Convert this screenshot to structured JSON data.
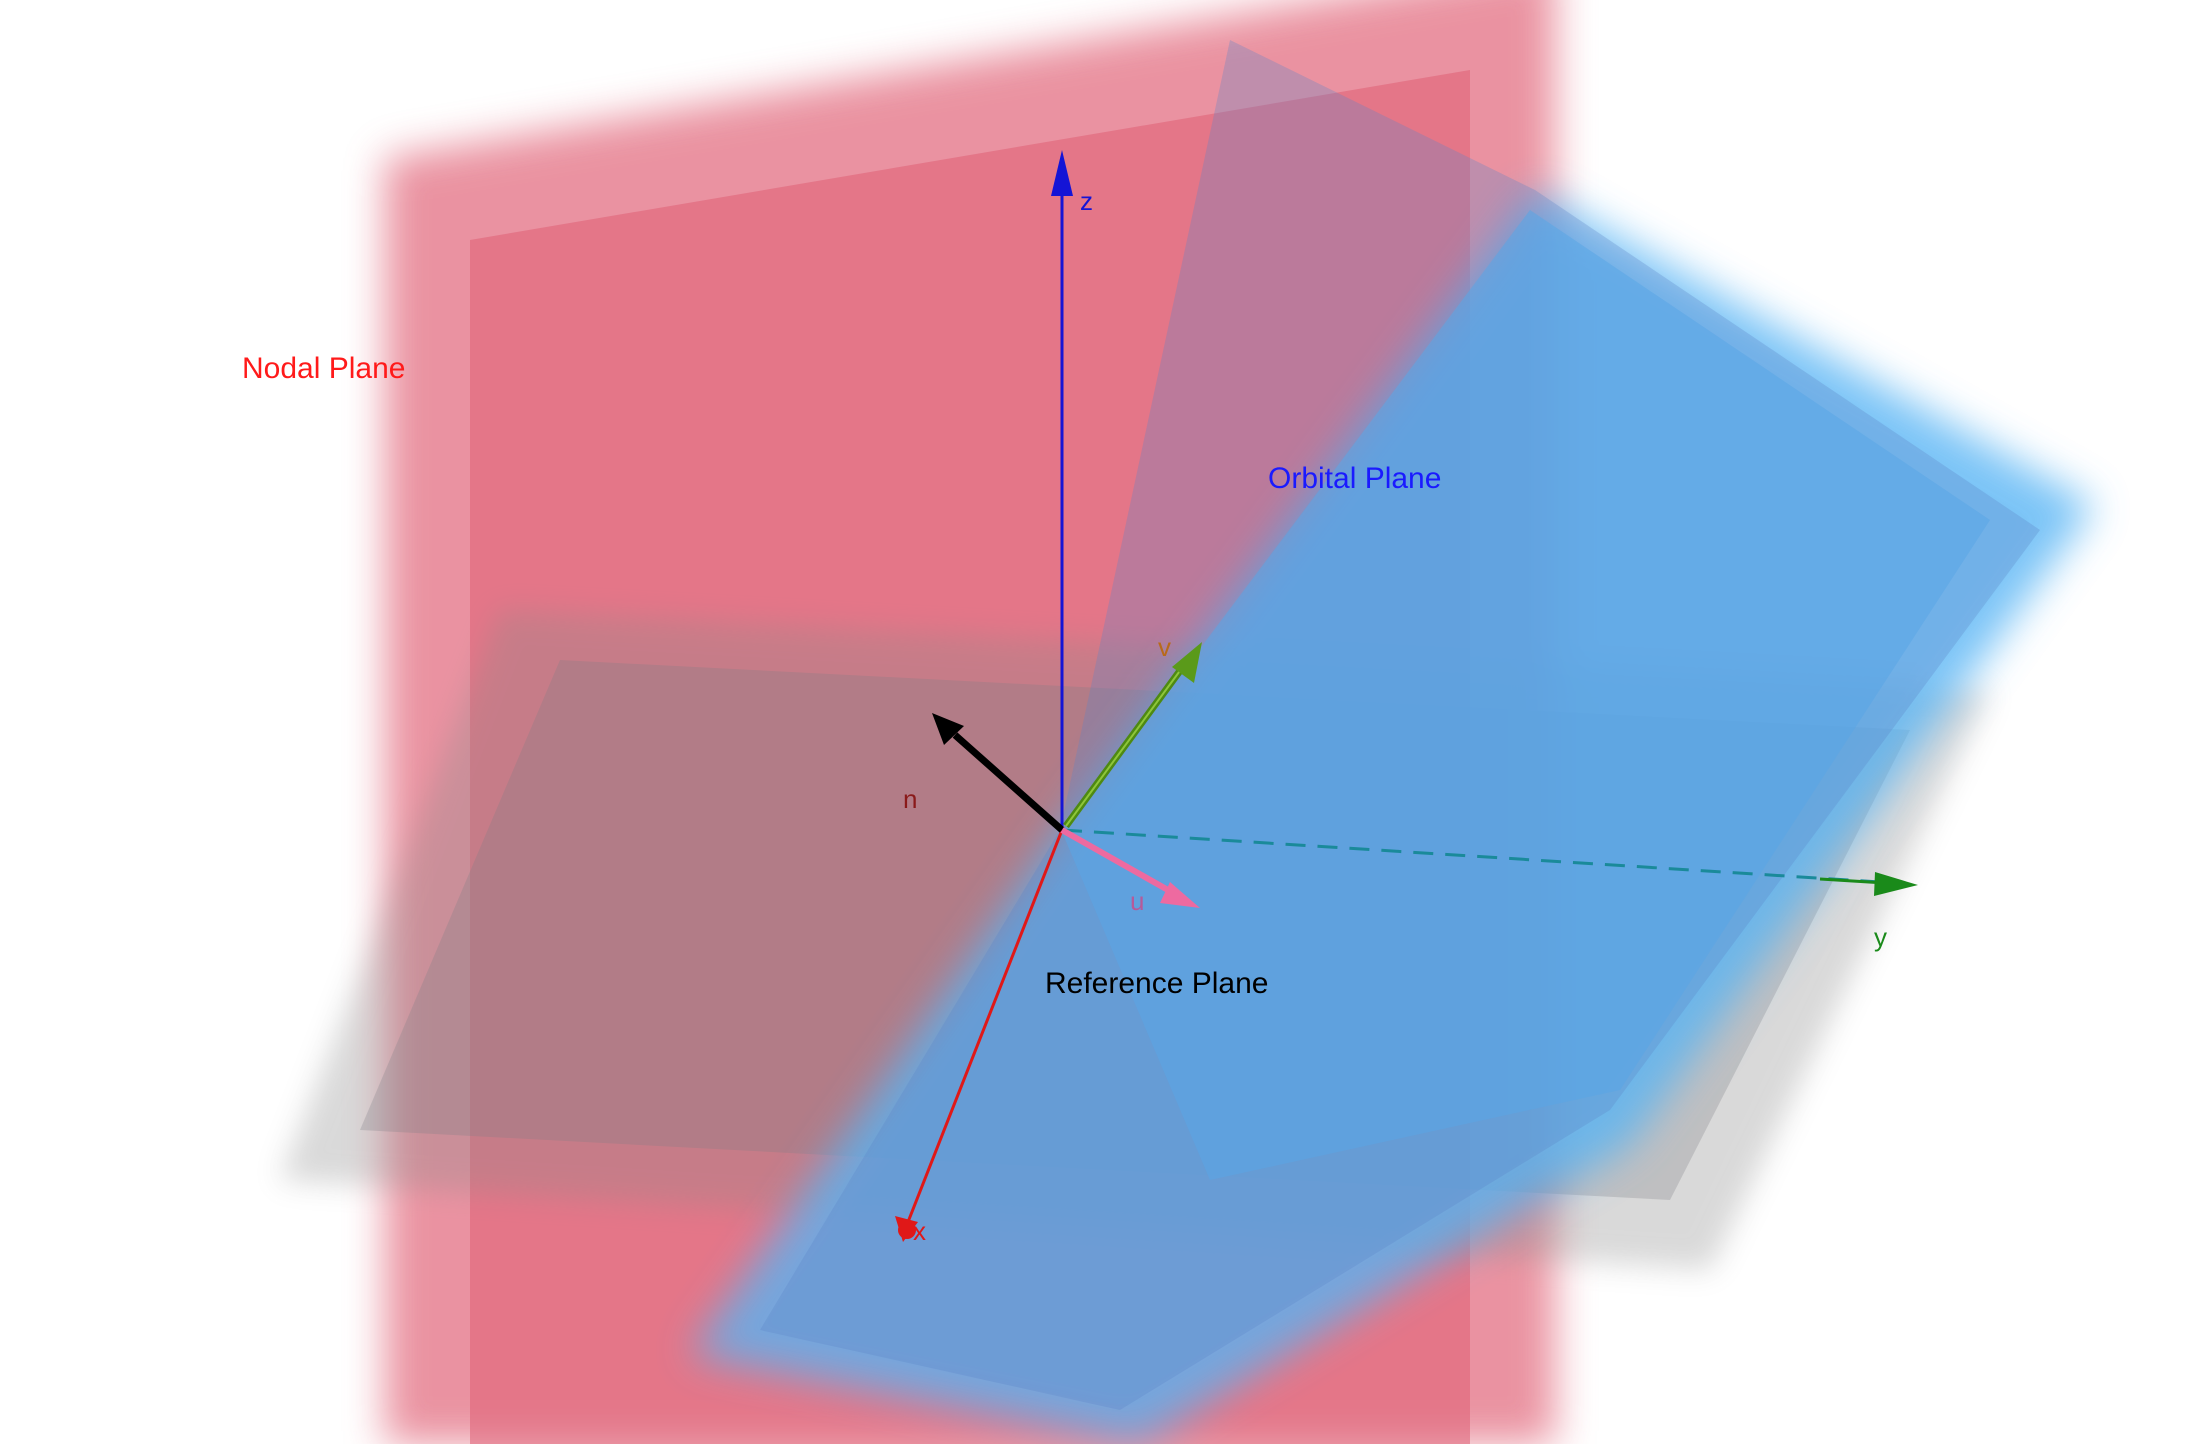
{
  "diagram": {
    "labels": {
      "nodal_plane": "Nodal Plane",
      "orbital_plane": "Orbital Plane",
      "reference_plane": "Reference Plane"
    },
    "axes": {
      "x": "x",
      "y": "y",
      "z": "z"
    },
    "vectors": {
      "n": "n",
      "u": "u",
      "v": "v"
    },
    "colors": {
      "nodal_plane": "#e06478",
      "orbital_plane": "#4fb1f2",
      "reference_plane": "#8e8e8e",
      "nodal_label": "#ff1a1a",
      "orbital_label": "#1a1aff",
      "reference_label": "#000000",
      "x_axis": "#e01818",
      "y_axis": "#1a8a1a",
      "z_axis": "#1414d6",
      "n_vector": "#000000",
      "u_vector": "#ee6aa0",
      "v_vector": "#5a9a1a",
      "v_label": "#b86a1a",
      "u_label": "#b65a9a",
      "n_label": "#8a1a1a",
      "line_of_nodes": "#1a8a9a"
    }
  }
}
